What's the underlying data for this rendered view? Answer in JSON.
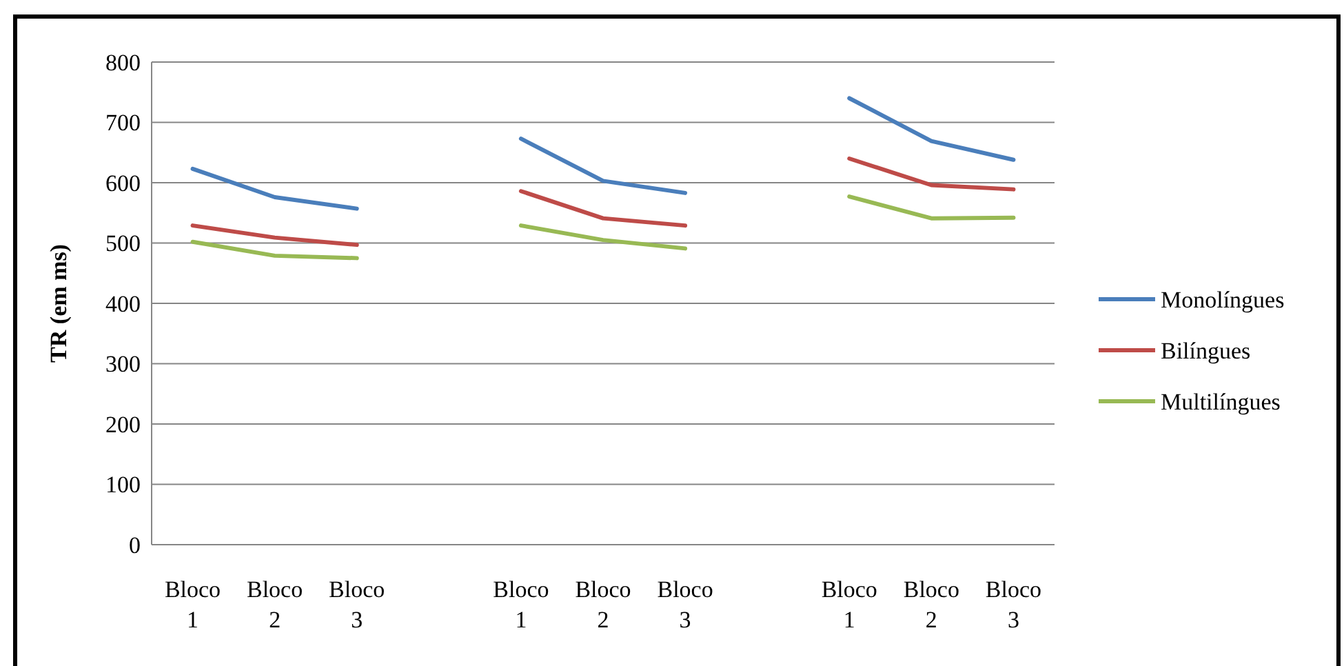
{
  "chart_data": {
    "type": "line",
    "ylabel": "TR (em ms)",
    "categories": [
      "Bloco 1",
      "Bloco 2",
      "Bloco 3",
      null,
      "Bloco 1",
      "Bloco 2",
      "Bloco 3",
      null,
      "Bloco 1",
      "Bloco 2",
      "Bloco 3"
    ],
    "series": [
      {
        "name": "Monolíngues",
        "color": "#4a7ebb",
        "values": [
          623,
          576,
          557,
          null,
          673,
          603,
          583,
          null,
          740,
          669,
          638
        ]
      },
      {
        "name": "Bilíngues",
        "color": "#be4b48",
        "values": [
          529,
          509,
          497,
          null,
          586,
          541,
          529,
          null,
          640,
          596,
          589
        ]
      },
      {
        "name": "Multilíngues",
        "color": "#98b954",
        "values": [
          502,
          479,
          475,
          null,
          529,
          505,
          491,
          null,
          577,
          541,
          542
        ]
      }
    ],
    "ylim": [
      0,
      800
    ],
    "yticks": [
      0,
      100,
      200,
      300,
      400,
      500,
      600,
      700,
      800
    ],
    "grid": "y",
    "legend": "right",
    "marker": "none",
    "line_style": "solid"
  }
}
